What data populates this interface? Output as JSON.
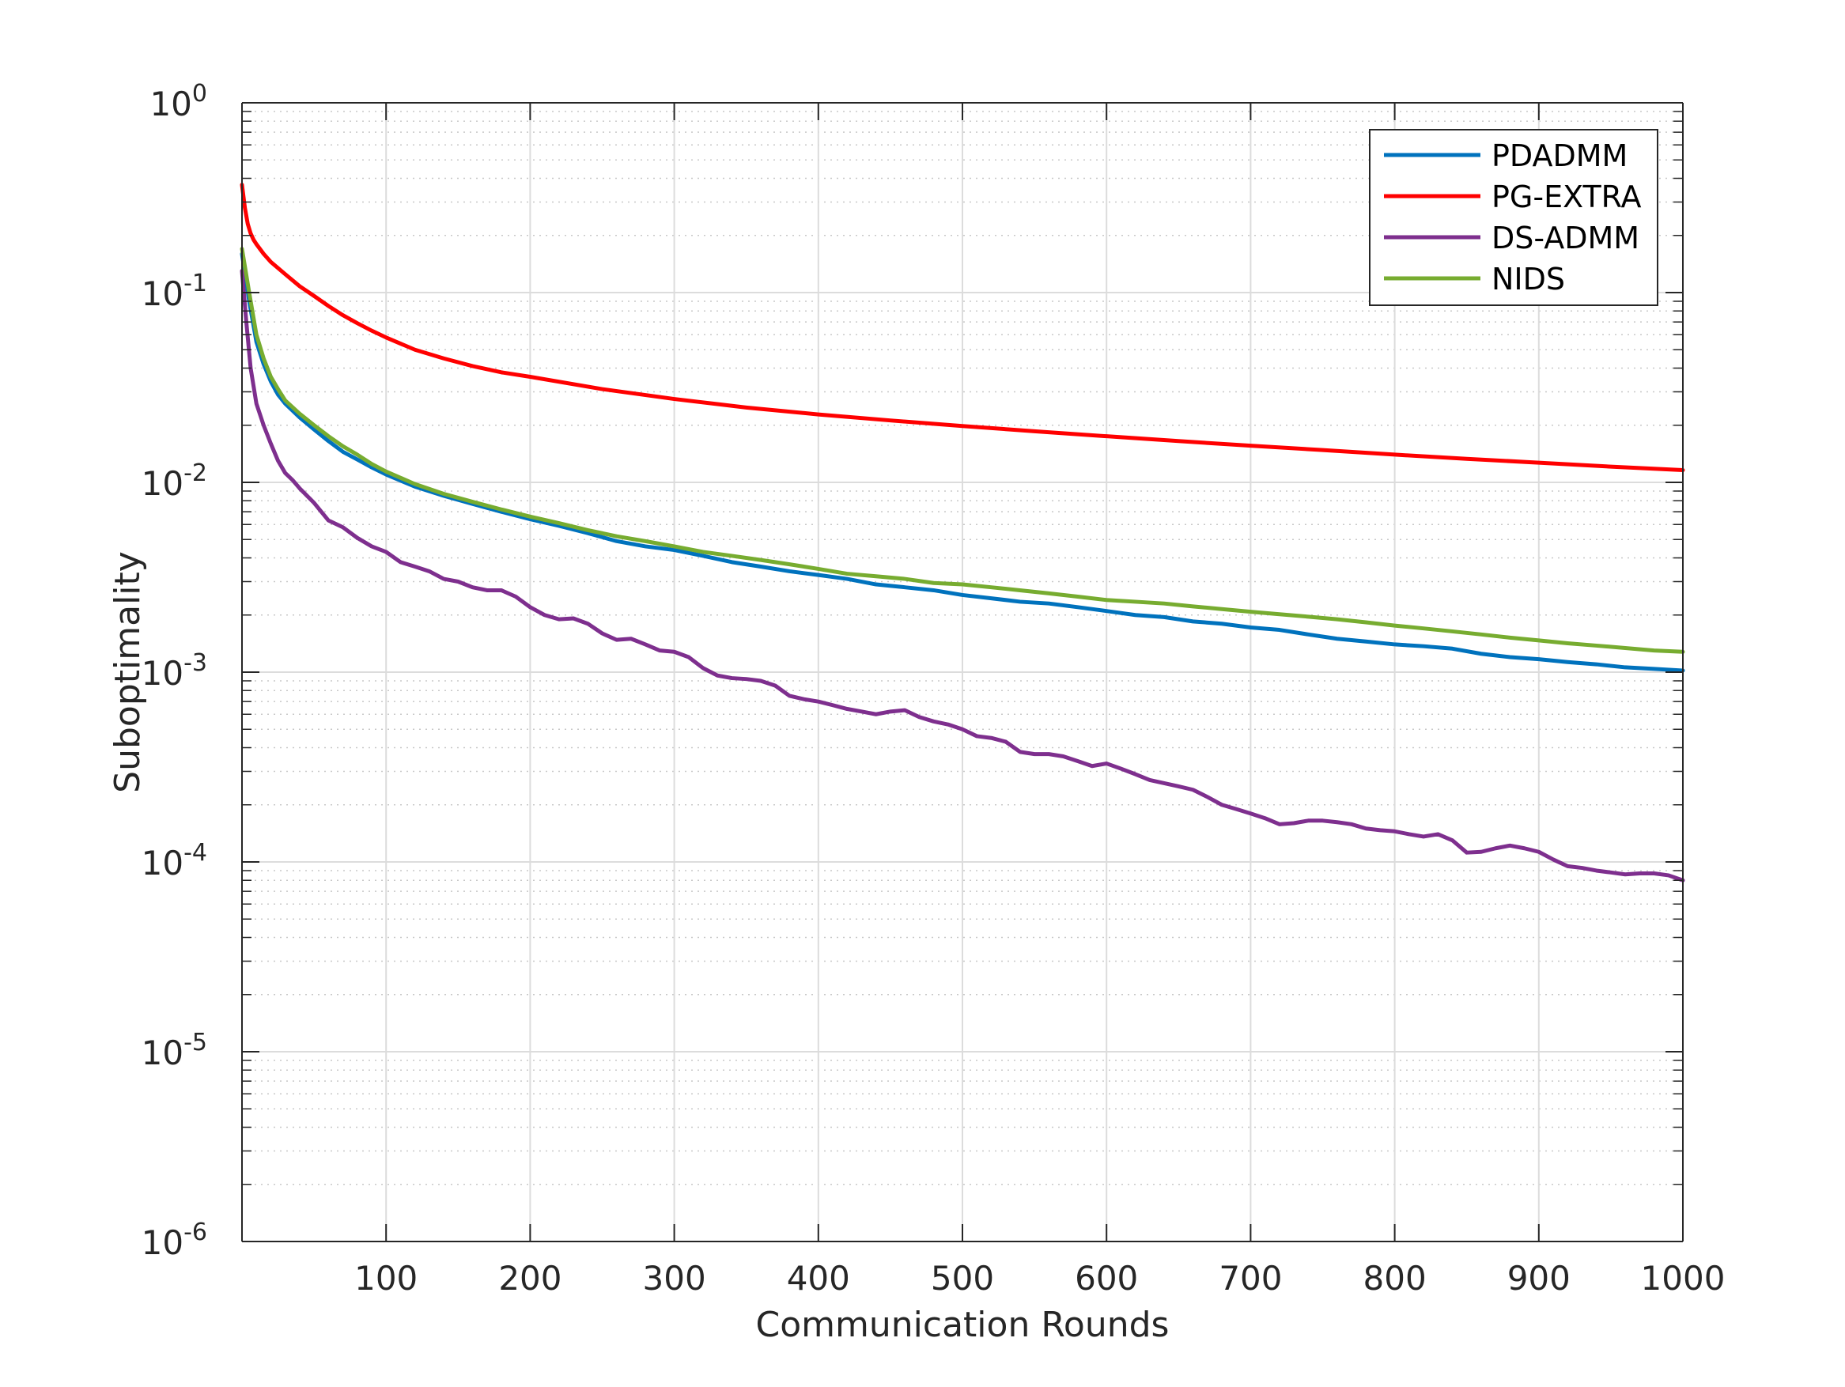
{
  "chart_data": {
    "type": "line",
    "xlabel": "Communication Rounds",
    "ylabel": "Suboptimality",
    "xlim": [
      0,
      1000
    ],
    "ylim": [
      1e-06,
      1
    ],
    "yscale": "log",
    "grid": true,
    "minor_grid": true,
    "legend_position": "top-right",
    "x_ticks": [
      100,
      200,
      300,
      400,
      500,
      600,
      700,
      800,
      900,
      1000
    ],
    "x_tick_labels": [
      "100",
      "200",
      "300",
      "400",
      "500",
      "600",
      "700",
      "800",
      "900",
      "1000"
    ],
    "y_ticks": [
      {
        "value": 1,
        "base": "10",
        "exp": "0"
      },
      {
        "value": 0.1,
        "base": "10",
        "exp": "-1"
      },
      {
        "value": 0.01,
        "base": "10",
        "exp": "-2"
      },
      {
        "value": 0.001,
        "base": "10",
        "exp": "-3"
      },
      {
        "value": 0.0001,
        "base": "10",
        "exp": "-4"
      },
      {
        "value": 1e-05,
        "base": "10",
        "exp": "-5"
      },
      {
        "value": 1e-06,
        "base": "10",
        "exp": "-6"
      }
    ],
    "series": [
      {
        "name": "PDADMM",
        "color": "#0072BD",
        "points": [
          [
            0,
            0.16
          ],
          [
            5,
            0.09
          ],
          [
            10,
            0.055
          ],
          [
            15,
            0.042
          ],
          [
            20,
            0.034
          ],
          [
            25,
            0.029
          ],
          [
            30,
            0.026
          ],
          [
            40,
            0.022
          ],
          [
            50,
            0.019
          ],
          [
            60,
            0.0165
          ],
          [
            70,
            0.0145
          ],
          [
            80,
            0.0132
          ],
          [
            90,
            0.012
          ],
          [
            100,
            0.011
          ],
          [
            120,
            0.0095
          ],
          [
            140,
            0.0085
          ],
          [
            160,
            0.0077
          ],
          [
            180,
            0.007
          ],
          [
            200,
            0.0064
          ],
          [
            220,
            0.0059
          ],
          [
            240,
            0.0054
          ],
          [
            260,
            0.0049
          ],
          [
            280,
            0.0046
          ],
          [
            300,
            0.0044
          ],
          [
            320,
            0.0041
          ],
          [
            340,
            0.0038
          ],
          [
            360,
            0.0036
          ],
          [
            380,
            0.0034
          ],
          [
            400,
            0.00325
          ],
          [
            420,
            0.0031
          ],
          [
            440,
            0.0029
          ],
          [
            460,
            0.0028
          ],
          [
            480,
            0.0027
          ],
          [
            500,
            0.00255
          ],
          [
            520,
            0.00245
          ],
          [
            540,
            0.00235
          ],
          [
            560,
            0.0023
          ],
          [
            580,
            0.0022
          ],
          [
            600,
            0.0021
          ],
          [
            620,
            0.002
          ],
          [
            640,
            0.00195
          ],
          [
            660,
            0.00185
          ],
          [
            680,
            0.0018
          ],
          [
            700,
            0.00172
          ],
          [
            720,
            0.00167
          ],
          [
            740,
            0.00158
          ],
          [
            760,
            0.0015
          ],
          [
            780,
            0.00145
          ],
          [
            800,
            0.0014
          ],
          [
            820,
            0.00137
          ],
          [
            840,
            0.00133
          ],
          [
            860,
            0.00125
          ],
          [
            880,
            0.0012
          ],
          [
            900,
            0.00117
          ],
          [
            920,
            0.00113
          ],
          [
            940,
            0.0011
          ],
          [
            960,
            0.00106
          ],
          [
            980,
            0.00104
          ],
          [
            1000,
            0.00102
          ]
        ]
      },
      {
        "name": "PG-EXTRA",
        "color": "#FF0000",
        "points": [
          [
            0,
            0.37
          ],
          [
            2,
            0.28
          ],
          [
            4,
            0.23
          ],
          [
            6,
            0.205
          ],
          [
            8,
            0.19
          ],
          [
            10,
            0.18
          ],
          [
            15,
            0.16
          ],
          [
            20,
            0.145
          ],
          [
            30,
            0.125
          ],
          [
            40,
            0.108
          ],
          [
            50,
            0.096
          ],
          [
            60,
            0.085
          ],
          [
            70,
            0.076
          ],
          [
            80,
            0.069
          ],
          [
            90,
            0.063
          ],
          [
            100,
            0.058
          ],
          [
            120,
            0.05
          ],
          [
            140,
            0.045
          ],
          [
            160,
            0.041
          ],
          [
            180,
            0.038
          ],
          [
            200,
            0.036
          ],
          [
            250,
            0.031
          ],
          [
            300,
            0.0275
          ],
          [
            350,
            0.0248
          ],
          [
            400,
            0.0228
          ],
          [
            450,
            0.0212
          ],
          [
            500,
            0.0198
          ],
          [
            550,
            0.0186
          ],
          [
            600,
            0.0175
          ],
          [
            650,
            0.0165
          ],
          [
            700,
            0.0156
          ],
          [
            750,
            0.0148
          ],
          [
            800,
            0.014
          ],
          [
            850,
            0.0133
          ],
          [
            900,
            0.0127
          ],
          [
            950,
            0.0121
          ],
          [
            1000,
            0.0116
          ]
        ]
      },
      {
        "name": "DS-ADMM",
        "color": "#7E2F8E",
        "points": [
          [
            0,
            0.13
          ],
          [
            3,
            0.07
          ],
          [
            6,
            0.04
          ],
          [
            10,
            0.026
          ],
          [
            15,
            0.02
          ],
          [
            20,
            0.016
          ],
          [
            25,
            0.013
          ],
          [
            30,
            0.0112
          ],
          [
            35,
            0.0103
          ],
          [
            40,
            0.0093
          ],
          [
            50,
            0.0078
          ],
          [
            60,
            0.0063
          ],
          [
            70,
            0.0058
          ],
          [
            80,
            0.0051
          ],
          [
            90,
            0.0046
          ],
          [
            100,
            0.0043
          ],
          [
            110,
            0.0038
          ],
          [
            120,
            0.0036
          ],
          [
            130,
            0.0034
          ],
          [
            140,
            0.0031
          ],
          [
            150,
            0.003
          ],
          [
            160,
            0.0028
          ],
          [
            170,
            0.0027
          ],
          [
            180,
            0.0027
          ],
          [
            190,
            0.0025
          ],
          [
            200,
            0.0022
          ],
          [
            210,
            0.002
          ],
          [
            220,
            0.0019
          ],
          [
            230,
            0.00192
          ],
          [
            240,
            0.0018
          ],
          [
            250,
            0.0016
          ],
          [
            260,
            0.00148
          ],
          [
            270,
            0.0015
          ],
          [
            280,
            0.0014
          ],
          [
            290,
            0.0013
          ],
          [
            300,
            0.00128
          ],
          [
            310,
            0.0012
          ],
          [
            320,
            0.00105
          ],
          [
            330,
            0.00096
          ],
          [
            340,
            0.00093
          ],
          [
            350,
            0.00092
          ],
          [
            360,
            0.0009
          ],
          [
            370,
            0.00085
          ],
          [
            380,
            0.00075
          ],
          [
            390,
            0.00072
          ],
          [
            400,
            0.0007
          ],
          [
            410,
            0.00067
          ],
          [
            420,
            0.00064
          ],
          [
            430,
            0.00062
          ],
          [
            440,
            0.0006
          ],
          [
            450,
            0.00062
          ],
          [
            460,
            0.00063
          ],
          [
            470,
            0.00058
          ],
          [
            480,
            0.00055
          ],
          [
            490,
            0.00053
          ],
          [
            500,
            0.0005
          ],
          [
            510,
            0.00046
          ],
          [
            520,
            0.00045
          ],
          [
            530,
            0.00043
          ],
          [
            540,
            0.00038
          ],
          [
            550,
            0.00037
          ],
          [
            560,
            0.00037
          ],
          [
            570,
            0.00036
          ],
          [
            580,
            0.00034
          ],
          [
            590,
            0.00032
          ],
          [
            600,
            0.00033
          ],
          [
            610,
            0.00031
          ],
          [
            620,
            0.00029
          ],
          [
            630,
            0.00027
          ],
          [
            640,
            0.00026
          ],
          [
            650,
            0.00025
          ],
          [
            660,
            0.00024
          ],
          [
            670,
            0.00022
          ],
          [
            680,
            0.0002
          ],
          [
            690,
            0.00019
          ],
          [
            700,
            0.00018
          ],
          [
            710,
            0.00017
          ],
          [
            720,
            0.000158
          ],
          [
            730,
            0.00016
          ],
          [
            740,
            0.000165
          ],
          [
            750,
            0.000165
          ],
          [
            760,
            0.000162
          ],
          [
            770,
            0.000158
          ],
          [
            780,
            0.00015
          ],
          [
            790,
            0.000147
          ],
          [
            800,
            0.000145
          ],
          [
            810,
            0.00014
          ],
          [
            820,
            0.000136
          ],
          [
            830,
            0.00014
          ],
          [
            840,
            0.00013
          ],
          [
            850,
            0.000112
          ],
          [
            860,
            0.000113
          ],
          [
            870,
            0.000118
          ],
          [
            880,
            0.000122
          ],
          [
            890,
            0.000118
          ],
          [
            900,
            0.000113
          ],
          [
            910,
            0.000103
          ],
          [
            920,
            9.5e-05
          ],
          [
            930,
            9.3e-05
          ],
          [
            940,
            9e-05
          ],
          [
            950,
            8.8e-05
          ],
          [
            960,
            8.6e-05
          ],
          [
            970,
            8.7e-05
          ],
          [
            980,
            8.7e-05
          ],
          [
            990,
            8.5e-05
          ],
          [
            1000,
            8e-05
          ]
        ]
      },
      {
        "name": "NIDS",
        "color": "#77AC30",
        "points": [
          [
            0,
            0.17
          ],
          [
            5,
            0.1
          ],
          [
            10,
            0.06
          ],
          [
            15,
            0.045
          ],
          [
            20,
            0.036
          ],
          [
            25,
            0.031
          ],
          [
            30,
            0.027
          ],
          [
            40,
            0.023
          ],
          [
            50,
            0.02
          ],
          [
            60,
            0.0175
          ],
          [
            70,
            0.0155
          ],
          [
            80,
            0.014
          ],
          [
            90,
            0.0125
          ],
          [
            100,
            0.0114
          ],
          [
            120,
            0.0098
          ],
          [
            140,
            0.0087
          ],
          [
            160,
            0.0079
          ],
          [
            180,
            0.0072
          ],
          [
            200,
            0.0066
          ],
          [
            220,
            0.0061
          ],
          [
            240,
            0.0056
          ],
          [
            260,
            0.0052
          ],
          [
            280,
            0.0049
          ],
          [
            300,
            0.0046
          ],
          [
            320,
            0.0043
          ],
          [
            340,
            0.0041
          ],
          [
            360,
            0.0039
          ],
          [
            380,
            0.0037
          ],
          [
            400,
            0.0035
          ],
          [
            420,
            0.0033
          ],
          [
            440,
            0.0032
          ],
          [
            460,
            0.0031
          ],
          [
            480,
            0.00295
          ],
          [
            500,
            0.0029
          ],
          [
            520,
            0.0028
          ],
          [
            540,
            0.0027
          ],
          [
            560,
            0.0026
          ],
          [
            580,
            0.0025
          ],
          [
            600,
            0.0024
          ],
          [
            620,
            0.00235
          ],
          [
            640,
            0.0023
          ],
          [
            660,
            0.00222
          ],
          [
            680,
            0.00215
          ],
          [
            700,
            0.00208
          ],
          [
            720,
            0.00202
          ],
          [
            740,
            0.00196
          ],
          [
            760,
            0.0019
          ],
          [
            780,
            0.00183
          ],
          [
            800,
            0.00176
          ],
          [
            820,
            0.0017
          ],
          [
            840,
            0.00164
          ],
          [
            860,
            0.00158
          ],
          [
            880,
            0.00152
          ],
          [
            900,
            0.00147
          ],
          [
            920,
            0.00142
          ],
          [
            940,
            0.00138
          ],
          [
            960,
            0.00134
          ],
          [
            980,
            0.0013
          ],
          [
            1000,
            0.00128
          ]
        ]
      }
    ]
  }
}
